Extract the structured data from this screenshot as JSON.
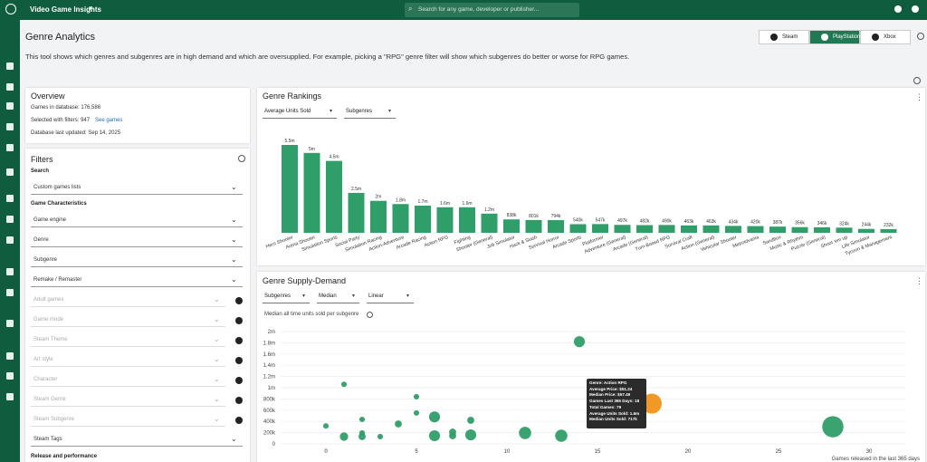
{
  "header": {
    "app_name": "Video Game Insights",
    "search_placeholder": "Search for any game, developer or publisher..."
  },
  "page": {
    "title": "Genre Analytics",
    "description": "This tool shows which genres and subgenres are in high demand and which are oversupplied. For example, picking a \"RPG\" genre filter will show which subgenres do better or worse for RPG games.",
    "platforms": [
      "Steam",
      "PlayStation",
      "Xbox"
    ],
    "active_platform": 1
  },
  "overview": {
    "title": "Overview",
    "games_in_database": "Games in database: 176,586",
    "selected": "Selected with filters: 947",
    "link": "See games",
    "updated": "Database last updated: Sep 14, 2025"
  },
  "filters": {
    "title": "Filters",
    "search_label": "Search",
    "custom_lists": "Custom games lists",
    "section": "Game Characteristics",
    "dropdowns": [
      {
        "label": "Game engine",
        "locked": false
      },
      {
        "label": "Genre",
        "locked": false
      },
      {
        "label": "Subgenre",
        "locked": false
      },
      {
        "label": "Remake / Remaster",
        "locked": false
      },
      {
        "label": "Adult games",
        "locked": true
      },
      {
        "label": "Game mode",
        "locked": true
      },
      {
        "label": "Steam Theme",
        "locked": true
      },
      {
        "label": "Art style",
        "locked": true
      },
      {
        "label": "Character",
        "locked": true
      },
      {
        "label": "Steam Genre",
        "locked": true
      },
      {
        "label": "Steam Subgenre",
        "locked": true
      },
      {
        "label": "Steam Tags",
        "locked": false
      }
    ],
    "footer": "Release and performance"
  },
  "chart_data": [
    {
      "type": "bar",
      "title": "Genre Rankings",
      "controls": [
        "Average Units Sold",
        "Subgenres"
      ],
      "color": "#2f9e68",
      "categories": [
        "Hero Shooter",
        "Arena Shooter",
        "Simulation Sports",
        "Social Party",
        "Simulation Racing",
        "Action-Adventure",
        "Arcade Racing",
        "Action RPG",
        "Fighting",
        "Shooter (General)",
        "Job Simulator",
        "Hack & Slash",
        "Survival Horror",
        "Arcade Sports",
        "Platformer",
        "Adventure (General)",
        "Arcade (General)",
        "Turn-Based RPG",
        "Survival Craft",
        "Action (General)",
        "Vehicular Shooter",
        "Metroidvania",
        "Sandbox",
        "Music & Rhythm",
        "Puzzle (General)",
        "Shoot 'em up",
        "Life Simulator",
        "Tycoon & Management"
      ],
      "values": [
        5500000,
        5000000,
        4500000,
        2500000,
        2000000,
        1800000,
        1700000,
        1600000,
        1600000,
        1200000,
        838000,
        801000,
        794000,
        540000,
        547000,
        497000,
        482000,
        490000,
        463000,
        463000,
        434000,
        420000,
        387000,
        356000,
        346000,
        324000,
        244000,
        232000
      ],
      "value_labels": [
        "5.5m",
        "5m",
        "4.5m",
        "2.5m",
        "2m",
        "1.8m",
        "1.7m",
        "1.6m",
        "1.6m",
        "1.2m",
        "838k",
        "801k",
        "794k",
        "540k",
        "547k",
        "497k",
        "482k",
        "490k",
        "463k",
        "463k",
        "434k",
        "420k",
        "387k",
        "356k",
        "346k",
        "324k",
        "244k",
        "232k"
      ]
    },
    {
      "type": "scatter",
      "title": "Genre Supply-Demand",
      "controls": [
        "Subgenres",
        "Median",
        "Linear"
      ],
      "subtitle": "Median all time units sold per subgenre",
      "xlabel": "Games released in the last 365 days",
      "grid": true,
      "x": [
        0,
        1,
        1,
        2,
        2,
        2,
        3,
        4,
        5,
        5,
        6,
        6,
        7,
        7,
        8,
        8,
        11,
        13,
        14,
        18,
        28
      ],
      "y": [
        320000,
        1060000,
        130000,
        435000,
        195000,
        130000,
        130000,
        355000,
        840000,
        550000,
        480000,
        145000,
        210000,
        145000,
        420000,
        160000,
        195000,
        145000,
        1820000,
        717000,
        305000
      ],
      "sizes": [
        6,
        6,
        14,
        6,
        6,
        10,
        6,
        10,
        6,
        6,
        24,
        24,
        10,
        10,
        10,
        24,
        30,
        30,
        24,
        79,
        90
      ],
      "colors": [
        "#2f9e68",
        "#2f9e68",
        "#2f9e68",
        "#2f9e68",
        "#2f9e68",
        "#2f9e68",
        "#2f9e68",
        "#2f9e68",
        "#2f9e68",
        "#2f9e68",
        "#2f9e68",
        "#2f9e68",
        "#2f9e68",
        "#2f9e68",
        "#2f9e68",
        "#2f9e68",
        "#2f9e68",
        "#2f9e68",
        "#2f9e68",
        "#f0931c",
        "#2f9e68"
      ],
      "xlim": [
        -2.5,
        32
      ],
      "ylim": [
        -100000,
        2100000
      ],
      "xticks": [
        0,
        5,
        10,
        15,
        20,
        25,
        30
      ],
      "yticks": [
        0,
        {
          "value": 200000,
          "label": "200k"
        },
        {
          "value": 400000,
          "label": "400k"
        },
        {
          "value": 600000,
          "label": "600k"
        },
        {
          "value": 800000,
          "label": "800k"
        },
        {
          "value": 1000000,
          "label": "1m"
        },
        {
          "value": 1200000,
          "label": "1.2m"
        },
        {
          "value": 1400000,
          "label": "1.4m"
        },
        {
          "value": 1600000,
          "label": "1.6m"
        },
        {
          "value": 1800000,
          "label": "1.8m"
        },
        {
          "value": 2000000,
          "label": "2m"
        }
      ],
      "tooltip": [
        "Genre: Action RPG",
        "Average Price: $51.24",
        "Median Price: $57.49",
        "Games Last 365 Days: 18",
        "Total Games: 79",
        "Average Units Sold: 1.6m",
        "Median Units Sold: 717k"
      ]
    }
  ]
}
